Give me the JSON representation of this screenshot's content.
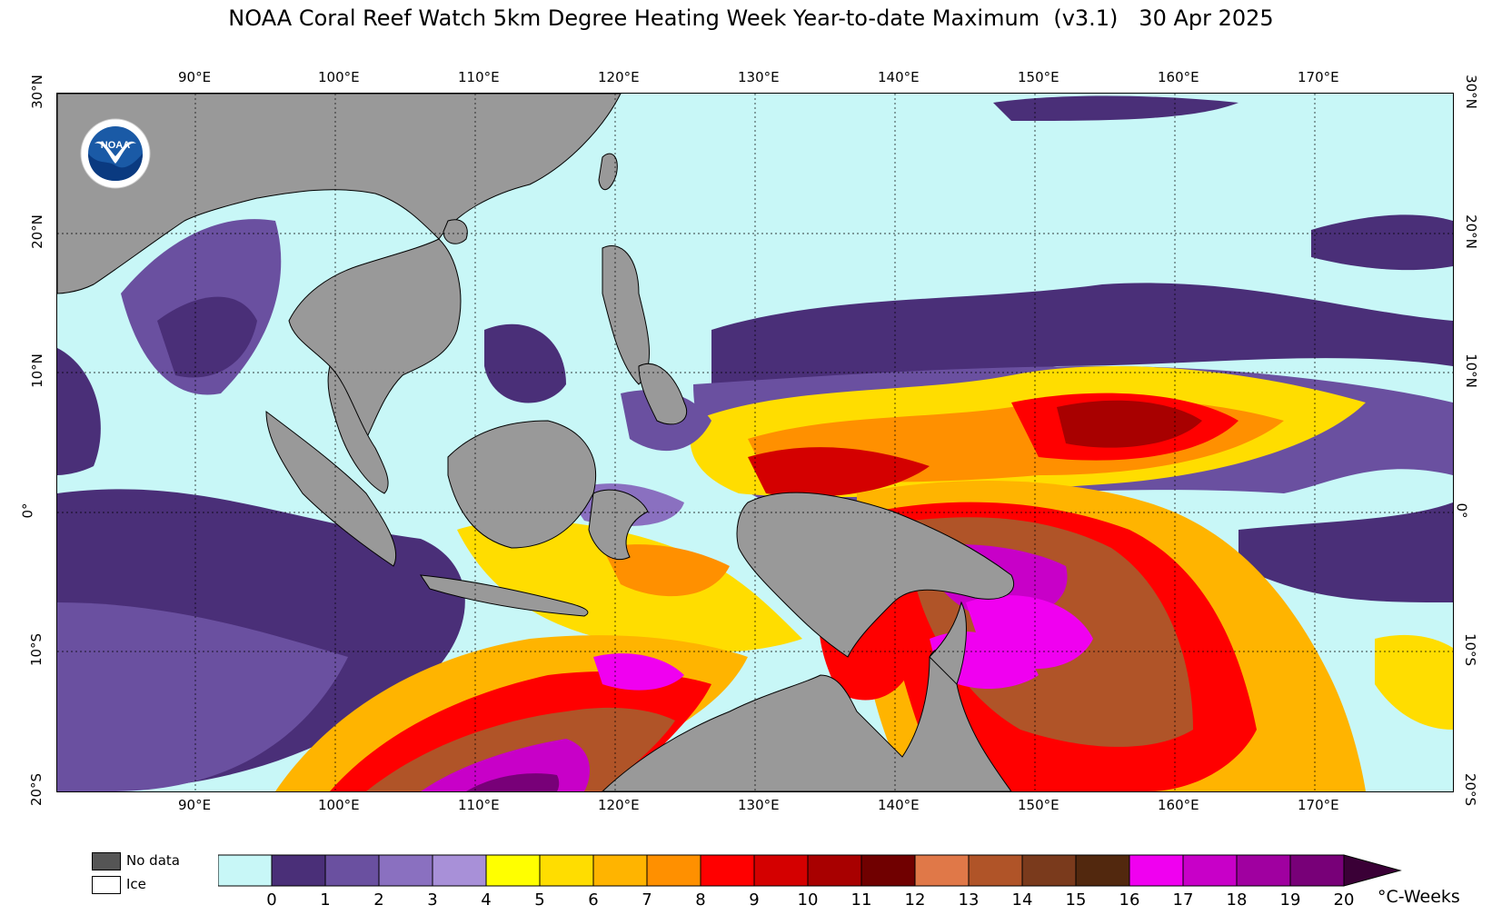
{
  "title": "NOAA Coral Reef Watch 5km Degree Heating Week Year-to-date Maximum  (v3.1)   30 Apr 2025",
  "logo": {
    "name": "noaa-logo",
    "text": "NOAA"
  },
  "axes": {
    "lon_labels": [
      "90°E",
      "100°E",
      "110°E",
      "120°E",
      "130°E",
      "140°E",
      "150°E",
      "160°E",
      "170°E"
    ],
    "lat_labels_left": [
      "30°N",
      "20°N",
      "10°N",
      "0°",
      "10°S",
      "20°S"
    ],
    "lat_labels_right": [
      "30°N",
      "20°N",
      "10°N",
      "0°",
      "10°S",
      "20°S"
    ]
  },
  "legend": {
    "no_data_label": "No data",
    "no_data_color": "#555555",
    "ice_label": "Ice",
    "ice_color": "#ffffff",
    "units": "°C-Weeks",
    "ticks": [
      "0",
      "1",
      "2",
      "3",
      "4",
      "5",
      "6",
      "7",
      "8",
      "9",
      "10",
      "11",
      "12",
      "13",
      "14",
      "15",
      "16",
      "17",
      "18",
      "19",
      "20"
    ],
    "colors": [
      "#c8f7f7",
      "#4a2f78",
      "#6a50a0",
      "#8a70c0",
      "#a890d8",
      "#ffff00",
      "#ffdd00",
      "#ffb400",
      "#ff9000",
      "#ff0000",
      "#d40000",
      "#a80000",
      "#700000",
      "#e07848",
      "#b05428",
      "#7a3a1c",
      "#52280e",
      "#f000f0",
      "#c800c8",
      "#a000a0",
      "#780078"
    ],
    "extend_color": "#3a0036"
  },
  "colors": {
    "land": "#999999",
    "ocean_zero": "#c8f7f7"
  }
}
